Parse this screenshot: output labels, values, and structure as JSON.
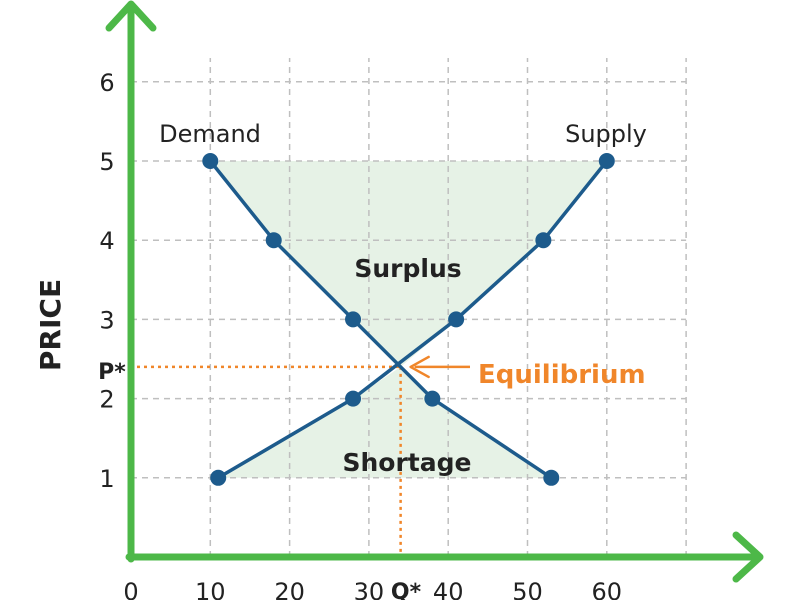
{
  "chart_data": {
    "type": "line",
    "ylabel": "PRICE",
    "xlabel": "",
    "x_ticks": [
      "0",
      "10",
      "20",
      "30",
      "40",
      "50",
      "60"
    ],
    "y_ticks": [
      "1",
      "2",
      "3",
      "4",
      "5",
      "6"
    ],
    "xlim": [
      0,
      70
    ],
    "ylim": [
      0,
      7
    ],
    "grid": true,
    "series": [
      {
        "name": "Demand",
        "points": [
          [
            10,
            5
          ],
          [
            18,
            4
          ],
          [
            28,
            3
          ],
          [
            38,
            2
          ],
          [
            53,
            1
          ]
        ]
      },
      {
        "name": "Supply",
        "points": [
          [
            11,
            1
          ],
          [
            28,
            2
          ],
          [
            41,
            3
          ],
          [
            52,
            4
          ],
          [
            60,
            5
          ]
        ]
      }
    ],
    "equilibrium": {
      "x": 34,
      "y": 2.4
    },
    "markers": {
      "price": "P*",
      "quantity": "Q*"
    },
    "annotations": {
      "surplus": "Surplus",
      "shortage": "Shortage",
      "equilibrium": "Equilibrium"
    },
    "colors": {
      "axis": "#4db848",
      "curve": "#1d5b8c",
      "grid": "#bfbfbf",
      "fill": "#e6f2e6",
      "guide": "#f0862a"
    }
  }
}
